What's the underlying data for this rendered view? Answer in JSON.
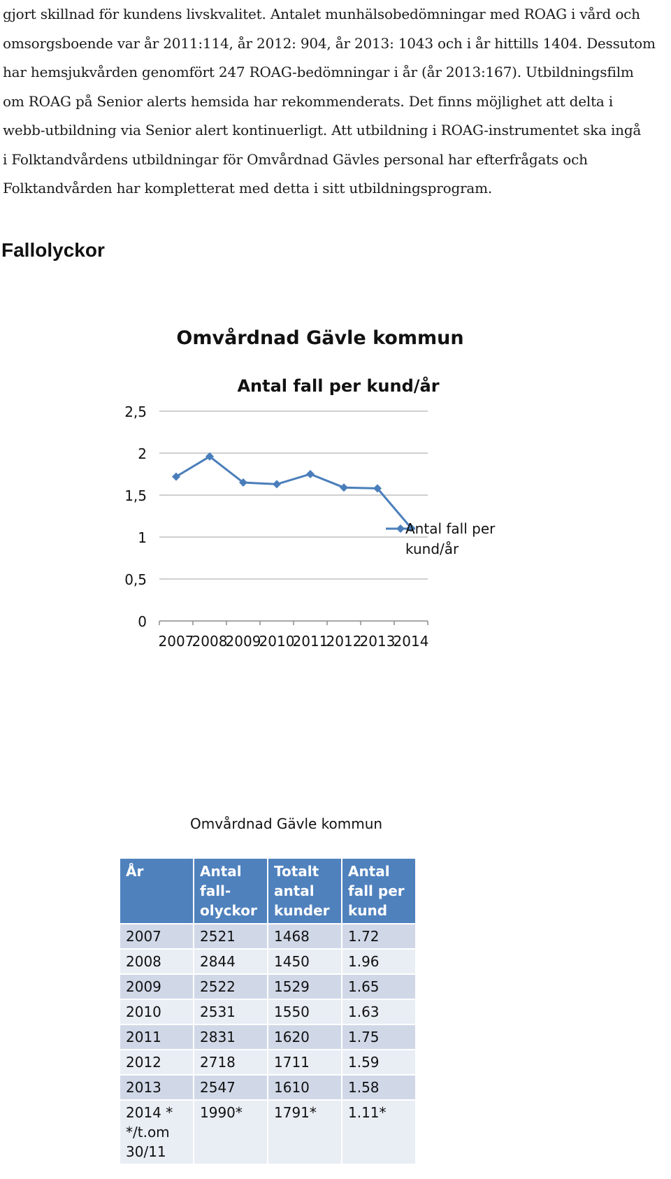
{
  "intro_lines": [
    "gjort skillnad för kundens livskvalitet. Antalet munhälsobedömningar med ROAG i vård och",
    "omsorgsboende var år 2011:114, år 2012: 904, år 2013: 1043 och i år hittills 1404. Dessutom",
    "har hemsjukvården genomfört 247 ROAG-bedömningar i år (år 2013:167). Utbildningsfilm",
    "om ROAG på Senior alerts hemsida har rekommenderats. Det finns möjlighet att delta i",
    "webb-utbildning via Senior alert kontinuerligt. Att utbildning i ROAG-instrumentet ska ingå",
    "i Folktandvårdens utbildningar för Omvårdnad Gävles personal har efterfrågats och",
    "Folktandvården har kompletterat med detta i sitt utbildningsprogram."
  ],
  "section_heading": "Fallolyckor",
  "chart_data": {
    "type": "line",
    "title": "Omvårdnad Gävle kommun",
    "subtitle": "Antal fall per kund/år",
    "categories": [
      "2007",
      "2008",
      "2009",
      "2010",
      "2011",
      "2012",
      "2013",
      "2014"
    ],
    "series": [
      {
        "name": "Antal fall per kund/år",
        "values": [
          1.72,
          1.96,
          1.65,
          1.63,
          1.75,
          1.59,
          1.58,
          1.11
        ]
      }
    ],
    "ylim": [
      0,
      2.5
    ],
    "yticks": [
      "0",
      "0,5",
      "1",
      "1,5",
      "2",
      "2,5"
    ],
    "ytick_values": [
      0,
      0.5,
      1,
      1.5,
      2,
      2.5
    ],
    "grid": true,
    "legend": "right",
    "legend_lines": [
      "Antal fall per",
      "kund/år"
    ],
    "colors": {
      "series": "#4a7ebb",
      "grid": "#bfbfbf",
      "axis": "#8c8c8c"
    }
  },
  "table": {
    "caption": "Omvårdnad Gävle kommun",
    "headers": [
      [
        "År"
      ],
      [
        "Antal",
        "fall-",
        "olyckor"
      ],
      [
        "Totalt",
        "antal",
        "kunder"
      ],
      [
        "Antal",
        "fall per",
        "kund"
      ]
    ],
    "rows": [
      [
        [
          "2007"
        ],
        [
          "2521"
        ],
        [
          "1468"
        ],
        [
          "1.72"
        ]
      ],
      [
        [
          "2008"
        ],
        [
          "2844"
        ],
        [
          "1450"
        ],
        [
          "1.96"
        ]
      ],
      [
        [
          "2009"
        ],
        [
          "2522"
        ],
        [
          "1529"
        ],
        [
          "1.65"
        ]
      ],
      [
        [
          "2010"
        ],
        [
          "2531"
        ],
        [
          "1550"
        ],
        [
          "1.63"
        ]
      ],
      [
        [
          "2011"
        ],
        [
          "2831"
        ],
        [
          "1620"
        ],
        [
          "1.75"
        ]
      ],
      [
        [
          "2012"
        ],
        [
          "2718"
        ],
        [
          "1711"
        ],
        [
          "1.59"
        ]
      ],
      [
        [
          "2013"
        ],
        [
          "2547"
        ],
        [
          "1610"
        ],
        [
          "1.58"
        ]
      ],
      [
        [
          "2014 *",
          "*/t.om",
          "30/11"
        ],
        [
          "1990*"
        ],
        [
          "1791*"
        ],
        [
          "1.11*"
        ]
      ]
    ],
    "colors": {
      "header_bg": "#4f81bd",
      "row_odd": "#d0d8e8",
      "row_even": "#e9edf4"
    }
  }
}
